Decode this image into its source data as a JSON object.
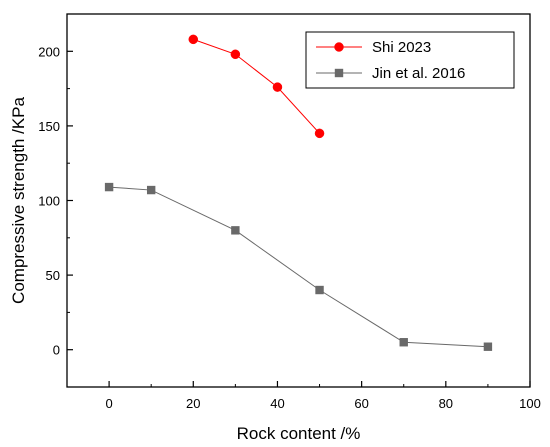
{
  "chart_data": {
    "type": "line",
    "xlabel": "Rock content /%",
    "ylabel": "Compressive strength /KPa",
    "xlim": [
      -10,
      100
    ],
    "ylim": [
      -25,
      225
    ],
    "xticks": [
      0,
      20,
      40,
      60,
      80,
      100
    ],
    "yticks": [
      0,
      50,
      100,
      150,
      200
    ],
    "x_tick_labels": [
      "0",
      "20",
      "40",
      "60",
      "80",
      "100"
    ],
    "y_tick_labels": [
      "0",
      "50",
      "100",
      "150",
      "200"
    ],
    "grid": false,
    "legend_position": "top-right",
    "series": [
      {
        "name": "Shi 2023",
        "marker": "circle",
        "color": "#ff0000",
        "x": [
          20,
          30,
          40,
          50
        ],
        "y": [
          208,
          198,
          176,
          145
        ]
      },
      {
        "name": "Jin et al. 2016",
        "marker": "square",
        "color": "#696969",
        "x": [
          0,
          10,
          30,
          50,
          70,
          90
        ],
        "y": [
          109,
          107,
          80,
          40,
          5,
          2
        ]
      }
    ]
  }
}
